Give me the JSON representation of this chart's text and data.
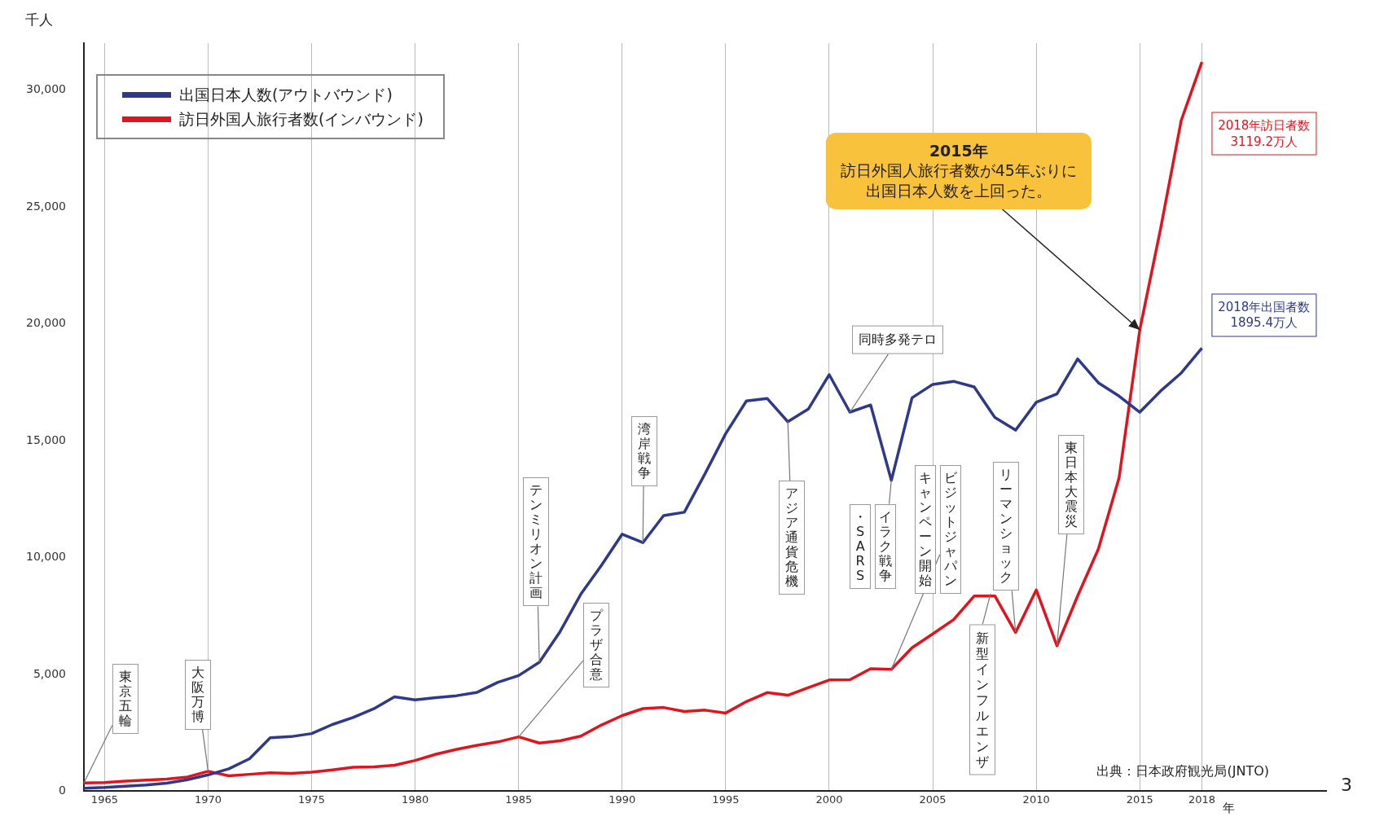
{
  "chart_data": {
    "type": "line",
    "xlabel": "年",
    "ylabel": "千人",
    "x": [
      1964,
      1965,
      1966,
      1967,
      1968,
      1969,
      1970,
      1971,
      1972,
      1973,
      1974,
      1975,
      1976,
      1977,
      1978,
      1979,
      1980,
      1981,
      1982,
      1983,
      1984,
      1985,
      1986,
      1987,
      1988,
      1989,
      1990,
      1991,
      1992,
      1993,
      1994,
      1995,
      1996,
      1997,
      1998,
      1999,
      2000,
      2001,
      2002,
      2003,
      2004,
      2005,
      2006,
      2007,
      2008,
      2009,
      2010,
      2011,
      2012,
      2013,
      2014,
      2015,
      2016,
      2017,
      2018
    ],
    "series": [
      {
        "name": "出国日本人数(アウトバウンド)",
        "color": "#2e3a87",
        "values": [
          128,
          159,
          212,
          268,
          344,
          493,
          700,
          961,
          1392,
          2289,
          2336,
          2466,
          2853,
          3151,
          3525,
          4039,
          3909,
          4007,
          4086,
          4233,
          4659,
          4948,
          5516,
          6829,
          8427,
          9663,
          10997,
          10634,
          11791,
          11934,
          13579,
          15298,
          16695,
          16803,
          15806,
          16358,
          17819,
          16216,
          16523,
          13296,
          16831,
          17404,
          17535,
          17295,
          15987,
          15446,
          16637,
          16994,
          18491,
          17473,
          16903,
          16214,
          17116,
          17889,
          18954
        ]
      },
      {
        "name": "訪日外国人旅行者数(インバウンド)",
        "color": "#e0141e",
        "values": [
          353,
          367,
          433,
          477,
          519,
          609,
          854,
          660,
          724,
          785,
          764,
          812,
          915,
          1028,
          1039,
          1113,
          1317,
          1583,
          1793,
          1968,
          2110,
          2327,
          2062,
          2155,
          2355,
          2835,
          3236,
          3533,
          3582,
          3410,
          3468,
          3345,
          3837,
          4218,
          4106,
          4438,
          4757,
          4772,
          5239,
          5212,
          6138,
          6728,
          7334,
          8347,
          8351,
          6790,
          8611,
          6219,
          8358,
          10364,
          13413,
          19737,
          24040,
          28691,
          31192
        ]
      }
    ],
    "xlim": [
      1964,
      2024
    ],
    "xticks": [
      1965,
      1970,
      1975,
      1980,
      1985,
      1990,
      1995,
      2000,
      2005,
      2010,
      2015,
      2018
    ],
    "ylim": [
      0,
      32000
    ],
    "yticks": [
      0,
      {
        "value": 5000,
        "label": "5,000"
      },
      {
        "value": 10000,
        "label": "10,000"
      },
      {
        "value": 15000,
        "label": "15,000"
      },
      {
        "value": 20000,
        "label": "20,000"
      },
      {
        "value": 25000,
        "label": "25,000"
      },
      {
        "value": 30000,
        "label": "30,000"
      }
    ],
    "grid": "x",
    "legend": "top left",
    "marker": "none",
    "line_style": "solid",
    "annotations": [
      {
        "text": "東京五輪",
        "x": 1964,
        "y": 353
      },
      {
        "text": "大阪万博",
        "x": 1970,
        "y": 854
      },
      {
        "text": "テンミリオン計画",
        "x": 1986,
        "y": 5516
      },
      {
        "text": "プラザ合意",
        "x": 1985,
        "y": 2327
      },
      {
        "text": "湾岸戦争",
        "x": 1991,
        "y": 10634
      },
      {
        "text": "アジア通貨危機",
        "x": 1998,
        "y": 15806
      },
      {
        "text": "同時多発テロ",
        "x": 2001,
        "y": 16216
      },
      {
        "text": "イラク戦争",
        "x": 2003,
        "y": 13296
      },
      "・SARS",
      {
        "text": "ビジットジャパン",
        "x": 2003,
        "y": 5212
      },
      "キャンペーン開始",
      "新型インフルエンザ",
      {
        "text": "リーマンショック",
        "x": 2009,
        "y": 6790
      },
      {
        "text": "東日本大震災",
        "x": 2011,
        "y": 6219
      },
      {
        "text": "2015年訪日外国人旅行者数が45年ぶりに出国日本人数を上回った。",
        "x": 2015,
        "y": 19737
      },
      "2018年訪日者数3119.2万人",
      "2018年出国者数1895.4万人",
      "出典：日本政府観光局(JNTO)",
      "3"
    ]
  }
}
